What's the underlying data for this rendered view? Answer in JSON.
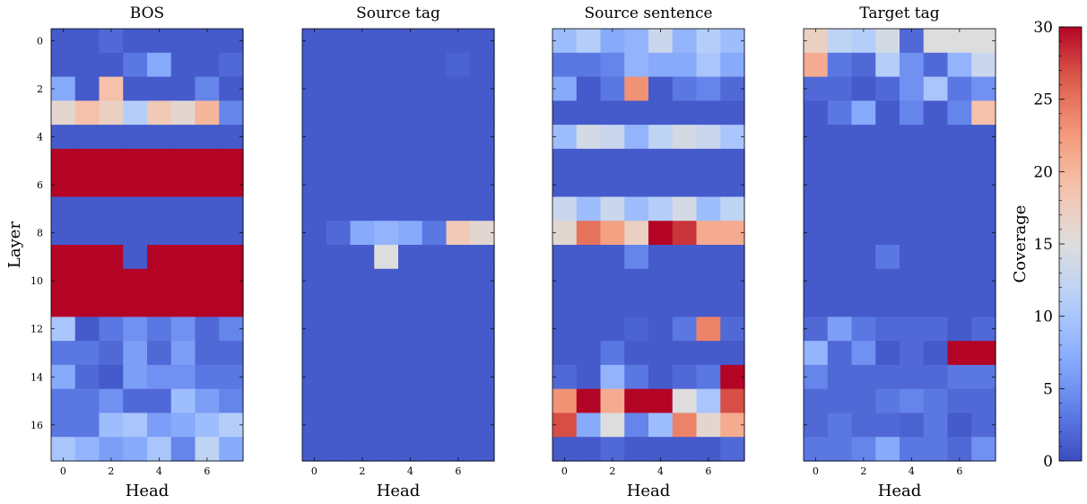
{
  "chart_data": {
    "type": "heatmap",
    "ylabel": "Layer",
    "xlabel": "Head",
    "colorbar": {
      "label": "Coverage",
      "range": [
        0,
        30
      ],
      "ticks": [
        0,
        5,
        10,
        15,
        20,
        25,
        30
      ],
      "colormap": "coolwarm"
    },
    "x_ticks": [
      0,
      2,
      4,
      6
    ],
    "y_ticks": [
      0,
      2,
      4,
      6,
      8,
      10,
      12,
      14,
      16
    ],
    "n_heads": 8,
    "n_layers": 18,
    "panels": [
      {
        "title": "BOS",
        "values": [
          [
            1,
            1,
            2,
            1,
            1,
            1,
            1,
            1
          ],
          [
            1,
            1,
            1,
            3,
            7,
            1,
            1,
            2
          ],
          [
            7,
            1,
            19,
            1,
            1,
            1,
            4,
            1
          ],
          [
            16,
            19,
            17,
            11,
            18,
            16,
            20,
            4
          ],
          [
            1,
            1,
            1,
            1,
            1,
            1,
            1,
            1
          ],
          [
            30,
            30,
            30,
            30,
            30,
            30,
            30,
            30
          ],
          [
            30,
            30,
            30,
            30,
            30,
            30,
            30,
            30
          ],
          [
            1,
            1,
            1,
            1,
            1,
            1,
            1,
            1
          ],
          [
            1,
            1,
            1,
            1,
            1,
            1,
            1,
            1
          ],
          [
            30,
            30,
            30,
            1,
            30,
            30,
            30,
            30
          ],
          [
            30,
            30,
            30,
            30,
            30,
            30,
            30,
            30
          ],
          [
            30,
            30,
            30,
            30,
            30,
            30,
            30,
            30
          ],
          [
            10,
            1,
            3,
            5,
            3,
            5,
            2,
            4
          ],
          [
            3,
            3,
            2,
            6,
            2,
            6,
            2,
            2
          ],
          [
            7,
            2,
            1,
            6,
            5,
            5,
            3,
            3
          ],
          [
            3,
            3,
            5,
            2,
            2,
            9,
            6,
            4
          ],
          [
            3,
            3,
            9,
            10,
            6,
            7,
            9,
            11
          ],
          [
            10,
            8,
            6,
            7,
            10,
            4,
            12,
            7
          ]
        ]
      },
      {
        "title": "Source tag",
        "values": [
          [
            1,
            1,
            1,
            1,
            1,
            1,
            1,
            1
          ],
          [
            1,
            1,
            1,
            1,
            1,
            1,
            1.5,
            1
          ],
          [
            1,
            1,
            1,
            1,
            1,
            1,
            1,
            1
          ],
          [
            1,
            1,
            1,
            1,
            1,
            1,
            1,
            1
          ],
          [
            1,
            1,
            1,
            1,
            1,
            1,
            1,
            1
          ],
          [
            1,
            1,
            1,
            1,
            1,
            1,
            1,
            1
          ],
          [
            1,
            1,
            1,
            1,
            1,
            1,
            1,
            1
          ],
          [
            1,
            1,
            1,
            1,
            1,
            1,
            1,
            1
          ],
          [
            1,
            2,
            7,
            8,
            7,
            3,
            18,
            16
          ],
          [
            1,
            1,
            1,
            15,
            1,
            1,
            1,
            1
          ],
          [
            1,
            1,
            1,
            1,
            1,
            1,
            1,
            1
          ],
          [
            1,
            1,
            1,
            1,
            1,
            1,
            1,
            1
          ],
          [
            1,
            1,
            1,
            1,
            1,
            1,
            1,
            1
          ],
          [
            1,
            1,
            1,
            1,
            1,
            1,
            1,
            1
          ],
          [
            1,
            1,
            1,
            1,
            1,
            1,
            1,
            1
          ],
          [
            1,
            1,
            1,
            1,
            1,
            1,
            1,
            1
          ],
          [
            1,
            1,
            1,
            1,
            1,
            1,
            1,
            1
          ],
          [
            1,
            1,
            1,
            1,
            1,
            1,
            1,
            1
          ]
        ]
      },
      {
        "title": "Source sentence",
        "values": [
          [
            9,
            11,
            7,
            8,
            13,
            8,
            11,
            9
          ],
          [
            3,
            3,
            4,
            8,
            7,
            7,
            10,
            7
          ],
          [
            7,
            1,
            3,
            23,
            1,
            3,
            4,
            2
          ],
          [
            1,
            1,
            1,
            1,
            1,
            1,
            1,
            1
          ],
          [
            9,
            14,
            13,
            8,
            12,
            14,
            13,
            10
          ],
          [
            1,
            1,
            1,
            1,
            1,
            1,
            1,
            1
          ],
          [
            1,
            1,
            1,
            1,
            1,
            1,
            1,
            1
          ],
          [
            13,
            9,
            13,
            9,
            11,
            14,
            9,
            12
          ],
          [
            16,
            25,
            22,
            17,
            30,
            28,
            21,
            21
          ],
          [
            1,
            1,
            1,
            4,
            1,
            1,
            1,
            1
          ],
          [
            1,
            1,
            1,
            1,
            1,
            1,
            1,
            1
          ],
          [
            1,
            1,
            1,
            1,
            1,
            1,
            1,
            1
          ],
          [
            1,
            1,
            1,
            1.5,
            1,
            3,
            24,
            2
          ],
          [
            1,
            1,
            3,
            1,
            1,
            1,
            1,
            1
          ],
          [
            2,
            1,
            8,
            3,
            1,
            2,
            3,
            30
          ],
          [
            23,
            30,
            21,
            30,
            30,
            15,
            10,
            27
          ],
          [
            27,
            7,
            15,
            4,
            9,
            24,
            16,
            21
          ],
          [
            1,
            1,
            2,
            1,
            1,
            1,
            1,
            2
          ]
        ]
      },
      {
        "title": "Target tag",
        "values": [
          [
            17,
            12,
            11,
            14,
            2,
            15,
            15,
            15
          ],
          [
            21,
            3,
            2,
            11,
            5,
            2,
            8,
            13
          ],
          [
            2,
            2,
            1,
            2,
            5,
            10,
            3,
            5
          ],
          [
            1,
            3,
            7,
            1,
            4,
            1,
            4,
            19
          ],
          [
            1,
            1,
            1,
            1,
            1,
            1,
            1,
            1
          ],
          [
            1,
            1,
            1,
            1,
            1,
            1,
            1,
            1
          ],
          [
            1,
            1,
            1,
            1,
            1,
            1,
            1,
            1
          ],
          [
            1,
            1,
            1,
            1,
            1,
            1,
            1,
            1
          ],
          [
            1,
            1,
            1,
            1,
            1,
            1,
            1,
            1
          ],
          [
            1,
            1,
            1,
            3,
            1,
            1,
            1,
            1
          ],
          [
            1,
            1,
            1,
            1,
            1,
            1,
            1,
            1
          ],
          [
            1,
            1,
            1,
            1,
            1,
            1,
            1,
            1
          ],
          [
            2,
            6,
            3,
            2,
            2,
            2,
            1,
            2
          ],
          [
            8,
            2,
            5,
            1,
            2,
            1,
            30,
            30
          ],
          [
            4,
            2,
            2,
            2,
            2,
            2,
            3,
            3
          ],
          [
            2,
            2,
            2,
            3,
            4,
            3,
            2,
            2
          ],
          [
            2,
            3,
            2,
            2,
            1.5,
            3,
            1,
            2
          ],
          [
            3,
            3,
            4,
            7,
            3,
            3,
            2,
            5
          ]
        ]
      }
    ]
  }
}
